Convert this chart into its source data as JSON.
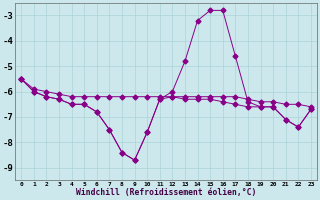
{
  "x": [
    0,
    1,
    2,
    3,
    4,
    5,
    6,
    7,
    8,
    9,
    10,
    11,
    12,
    13,
    14,
    15,
    16,
    17,
    18,
    19,
    20,
    21,
    22,
    23
  ],
  "line1": [
    -5.5,
    -5.9,
    -6.0,
    -6.1,
    -6.2,
    -6.2,
    -6.2,
    -6.2,
    -6.2,
    -6.2,
    -6.2,
    -6.2,
    -6.2,
    -6.2,
    -6.2,
    -6.2,
    -6.2,
    -6.2,
    -6.3,
    -6.4,
    -6.4,
    -6.5,
    -6.5,
    -6.6
  ],
  "line2": [
    -5.5,
    -6.0,
    -6.2,
    -6.3,
    -6.5,
    -6.5,
    -6.8,
    -7.5,
    -8.4,
    -8.7,
    -7.6,
    -6.3,
    -6.2,
    -6.3,
    -6.3,
    -6.3,
    -6.4,
    -6.5,
    -6.6,
    -6.6,
    -6.6,
    -7.1,
    -7.4,
    -6.7
  ],
  "line3": [
    -5.5,
    -6.0,
    -6.2,
    -6.3,
    -6.5,
    -6.5,
    -6.8,
    -7.5,
    -8.4,
    -8.7,
    -7.6,
    -6.3,
    -6.0,
    -4.8,
    -3.2,
    -2.8,
    -2.8,
    -4.6,
    -6.4,
    -6.6,
    -6.6,
    -7.1,
    -7.4,
    -6.7
  ],
  "bg_color": "#cce8ec",
  "grid_color": "#aad4d8",
  "line_color": "#880088",
  "ylabel_values": [
    -3,
    -4,
    -5,
    -6,
    -7,
    -8,
    -9
  ],
  "xlabel": "Windchill (Refroidissement éolien,°C)",
  "ylim": [
    -9.5,
    -2.5
  ],
  "xlim": [
    -0.5,
    23.5
  ],
  "xtick_labels": [
    "0",
    "1",
    "2",
    "3",
    "4",
    "5",
    "6",
    "7",
    "8",
    "9",
    "10",
    "11",
    "12",
    "13",
    "14",
    "15",
    "16",
    "17",
    "18",
    "19",
    "20",
    "21",
    "22",
    "23"
  ]
}
